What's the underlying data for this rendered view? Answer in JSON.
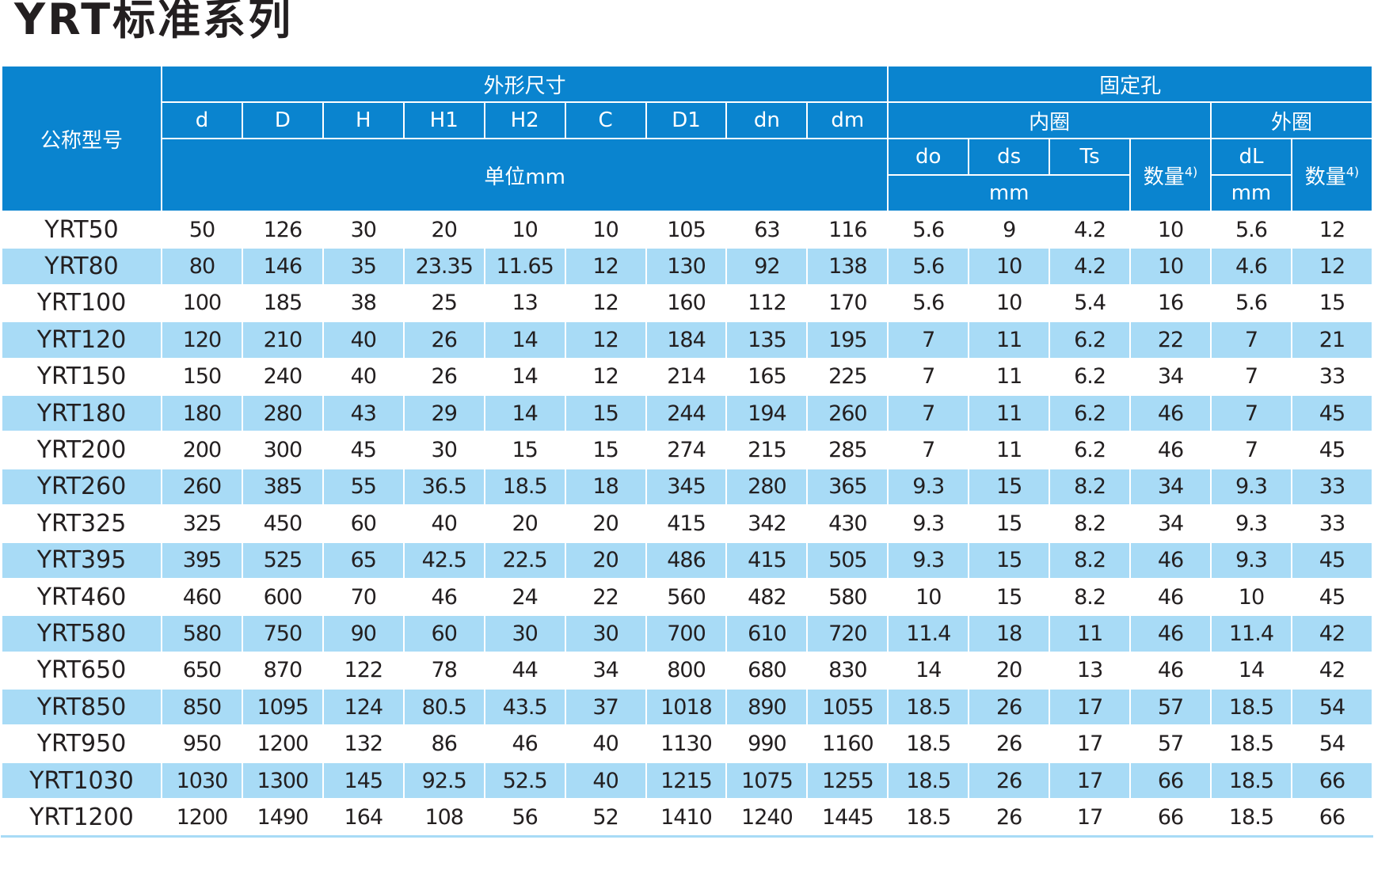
{
  "title": "YRT标准系列",
  "header": {
    "model": "公称型号",
    "group1": "外形尺寸",
    "group2": "固定孔",
    "dims": [
      "d",
      "D",
      "H",
      "H1",
      "H2",
      "C",
      "D1",
      "dn",
      "dm"
    ],
    "inner": "内圈",
    "outer": "外圈",
    "unit": "单位mm",
    "inner_cols": [
      "do",
      "ds",
      "Ts"
    ],
    "count": "数量",
    "note": "4)",
    "outer_col": "dL",
    "mm": "mm"
  },
  "table": {
    "rows": [
      [
        "YRT50",
        50,
        126,
        30,
        20,
        10,
        10,
        105,
        63,
        116,
        5.6,
        9,
        4.2,
        10,
        5.6,
        12
      ],
      [
        "YRT80",
        80,
        146,
        35,
        23.35,
        11.65,
        12,
        130,
        92,
        138,
        5.6,
        10,
        4.2,
        10,
        4.6,
        12
      ],
      [
        "YRT100",
        100,
        185,
        38,
        25,
        13,
        12,
        160,
        112,
        170,
        5.6,
        10,
        5.4,
        16,
        5.6,
        15
      ],
      [
        "YRT120",
        120,
        210,
        40,
        26,
        14,
        12,
        184,
        135,
        195,
        7,
        11,
        6.2,
        22,
        7,
        21
      ],
      [
        "YRT150",
        150,
        240,
        40,
        26,
        14,
        12,
        214,
        165,
        225,
        7,
        11,
        6.2,
        34,
        7,
        33
      ],
      [
        "YRT180",
        180,
        280,
        43,
        29,
        14,
        15,
        244,
        194,
        260,
        7,
        11,
        6.2,
        46,
        7,
        45
      ],
      [
        "YRT200",
        200,
        300,
        45,
        30,
        15,
        15,
        274,
        215,
        285,
        7,
        11,
        6.2,
        46,
        7,
        45
      ],
      [
        "YRT260",
        260,
        385,
        55,
        36.5,
        18.5,
        18,
        345,
        280,
        365,
        9.3,
        15,
        8.2,
        34,
        9.3,
        33
      ],
      [
        "YRT325",
        325,
        450,
        60,
        40,
        20,
        20,
        415,
        342,
        430,
        9.3,
        15,
        8.2,
        34,
        9.3,
        33
      ],
      [
        "YRT395",
        395,
        525,
        65,
        42.5,
        22.5,
        20,
        486,
        415,
        505,
        9.3,
        15,
        8.2,
        46,
        9.3,
        45
      ],
      [
        "YRT460",
        460,
        600,
        70,
        46,
        24,
        22,
        560,
        482,
        580,
        10,
        15,
        8.2,
        46,
        10,
        45
      ],
      [
        "YRT580",
        580,
        750,
        90,
        60,
        30,
        30,
        700,
        610,
        720,
        11.4,
        18,
        11,
        46,
        11.4,
        42
      ],
      [
        "YRT650",
        650,
        870,
        122,
        78,
        44,
        34,
        800,
        680,
        830,
        14,
        20,
        13,
        46,
        14,
        42
      ],
      [
        "YRT850",
        850,
        1095,
        124,
        80.5,
        43.5,
        37,
        1018,
        890,
        1055,
        18.5,
        26,
        17,
        57,
        18.5,
        54
      ],
      [
        "YRT950",
        950,
        1200,
        132,
        86,
        46,
        40,
        1130,
        990,
        1160,
        18.5,
        26,
        17,
        57,
        18.5,
        54
      ],
      [
        "YRT1030",
        1030,
        1300,
        145,
        92.5,
        52.5,
        40,
        1215,
        1075,
        1255,
        18.5,
        26,
        17,
        66,
        18.5,
        66
      ],
      [
        "YRT1200",
        1200,
        1490,
        164,
        108,
        56,
        52,
        1410,
        1240,
        1445,
        18.5,
        26,
        17,
        66,
        18.5,
        66
      ]
    ]
  }
}
